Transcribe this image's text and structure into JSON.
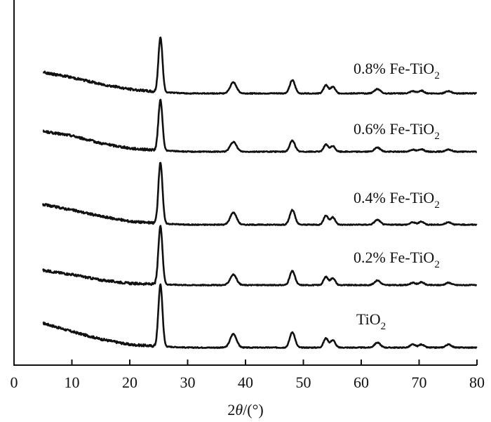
{
  "chart_data": {
    "type": "line",
    "title": "",
    "xlabel": "2θ/(°)",
    "xlabel_parts": [
      "2",
      "θ",
      "/(°)"
    ],
    "ylabel": "",
    "xlim": [
      0,
      80
    ],
    "x_ticks": [
      0,
      10,
      20,
      30,
      40,
      50,
      60,
      70,
      80
    ],
    "x_tick_labels": [
      "0",
      "10",
      "20",
      "30",
      "40",
      "50",
      "60",
      "70",
      "80"
    ],
    "y_ticks_shown": false,
    "grid": false,
    "legend": "labels placed beside each trace",
    "line_color": "#111111",
    "peak_positions_2theta": [
      25.3,
      37.9,
      48.1,
      53.9,
      55.1,
      62.8,
      68.9,
      70.4,
      75.1
    ],
    "series": [
      {
        "label_parts": [
          "TiO",
          "2",
          ""
        ],
        "baseline_curve": [
          [
            5,
            0.58
          ],
          [
            10,
            0.38
          ],
          [
            15,
            0.2
          ],
          [
            20,
            0.07
          ],
          [
            25,
            0.03
          ],
          [
            30,
            0.0
          ],
          [
            80,
            0.0
          ]
        ],
        "peak_heights": [
          1.0,
          0.22,
          0.25,
          0.15,
          0.12,
          0.08,
          0.05,
          0.05,
          0.05
        ]
      },
      {
        "label_parts": [
          "0.2% Fe-TiO",
          "2",
          ""
        ],
        "baseline_curve": [
          [
            5,
            0.35
          ],
          [
            10,
            0.25
          ],
          [
            15,
            0.12
          ],
          [
            20,
            0.04
          ],
          [
            25,
            0.02
          ],
          [
            30,
            0.0
          ],
          [
            80,
            0.0
          ]
        ],
        "peak_heights": [
          1.0,
          0.18,
          0.24,
          0.14,
          0.12,
          0.08,
          0.04,
          0.05,
          0.04
        ]
      },
      {
        "label_parts": [
          "0.4% Fe-TiO",
          "2",
          ""
        ],
        "baseline_curve": [
          [
            5,
            0.48
          ],
          [
            10,
            0.35
          ],
          [
            15,
            0.2
          ],
          [
            20,
            0.08
          ],
          [
            25,
            0.03
          ],
          [
            30,
            0.0
          ],
          [
            80,
            0.0
          ]
        ],
        "peak_heights": [
          1.0,
          0.2,
          0.24,
          0.15,
          0.12,
          0.08,
          0.04,
          0.05,
          0.04
        ]
      },
      {
        "label_parts": [
          "0.6% Fe-TiO",
          "2",
          ""
        ],
        "baseline_curve": [
          [
            5,
            0.48
          ],
          [
            10,
            0.38
          ],
          [
            15,
            0.2
          ],
          [
            20,
            0.08
          ],
          [
            25,
            0.03
          ],
          [
            30,
            0.0
          ],
          [
            80,
            0.0
          ]
        ],
        "peak_heights": [
          1.0,
          0.19,
          0.22,
          0.14,
          0.11,
          0.08,
          0.04,
          0.05,
          0.04
        ]
      },
      {
        "label_parts": [
          "0.8% Fe-TiO",
          "2",
          ""
        ],
        "baseline_curve": [
          [
            5,
            0.5
          ],
          [
            10,
            0.38
          ],
          [
            15,
            0.22
          ],
          [
            20,
            0.1
          ],
          [
            25,
            0.03
          ],
          [
            30,
            0.0
          ],
          [
            80,
            0.0
          ]
        ],
        "peak_heights": [
          1.0,
          0.2,
          0.24,
          0.15,
          0.12,
          0.08,
          0.04,
          0.05,
          0.04
        ]
      }
    ]
  }
}
